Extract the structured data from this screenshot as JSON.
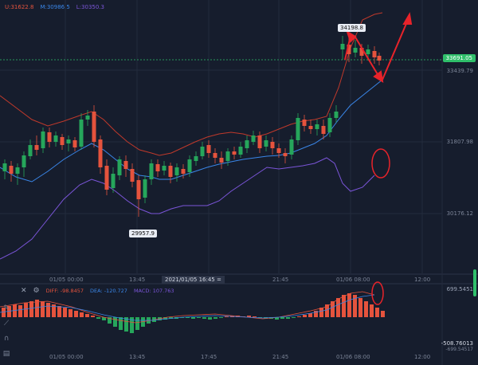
{
  "legend": {
    "upper": "U:31622.8",
    "middle": "M:30986.5",
    "lower": "L:30350.3"
  },
  "price_axis": {
    "current_price": "33691.05",
    "labels": [
      "33439.79",
      "31807.98",
      "30176.12"
    ]
  },
  "time_axis": {
    "main_labels": [
      "01/05 00:00",
      "13:45",
      "21:45",
      "01/06 08:00",
      "12:00"
    ],
    "crosshair_time": "2021/01/05 16:45",
    "macd_labels": [
      "01/05 00:00",
      "13:45",
      "17:45",
      "21:45",
      "01/06 08:00",
      "12:00"
    ]
  },
  "annotations": {
    "high_bubble": "34198.8",
    "low_bubble": "29957.9"
  },
  "macd_legend": {
    "diff": "DIFF: -98.8457",
    "dea": "DEA: -120.727",
    "macd": "MACD: 107.763"
  },
  "macd_axis": {
    "top": "699.5451",
    "bottom": "-508.76013",
    "bottom2": "-699.54517"
  },
  "colors": {
    "up": "#26a65b",
    "down": "#e5533d",
    "upper_band": "#c0392b",
    "middle_band": "#3a86e8",
    "lower_band": "#7b55d9",
    "annotation": "#e8232a"
  },
  "icons": [
    "close-icon",
    "eye-icon",
    "settings-icon",
    "draw-tool-icon",
    "ruler-icon",
    "magnet-icon",
    "trash-icon"
  ]
}
